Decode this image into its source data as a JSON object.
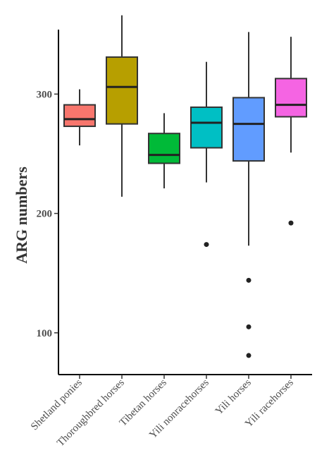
{
  "chart_data": {
    "type": "boxplot",
    "title": "",
    "xlabel": "",
    "ylabel": "ARG numbers",
    "ylim": [
      65,
      367
    ],
    "yticks": [
      100,
      200,
      300
    ],
    "grid": false,
    "legend": "none",
    "categories": [
      "Shetland ponies",
      "Thoroughbred horses",
      "Tibetan horses",
      "Yili nonracehorses",
      "Yili horses",
      "Yili racehorses"
    ],
    "boxes": [
      {
        "name": "Shetland ponies",
        "whisker_low": 257,
        "q1": 273,
        "median": 279,
        "q3": 291,
        "whisker_high": 304,
        "outliers": [],
        "color": "#f8766d"
      },
      {
        "name": "Thoroughbred horses",
        "whisker_low": 214,
        "q1": 275,
        "median": 306,
        "q3": 331,
        "whisker_high": 366,
        "outliers": [],
        "color": "#b79f00"
      },
      {
        "name": "Tibetan horses",
        "whisker_low": 221,
        "q1": 242,
        "median": 249,
        "q3": 267,
        "whisker_high": 284,
        "outliers": [],
        "color": "#00ba38"
      },
      {
        "name": "Yili nonracehorses",
        "whisker_low": 226,
        "q1": 255,
        "median": 276,
        "q3": 289,
        "whisker_high": 327,
        "outliers": [
          174
        ],
        "color": "#00bfc4"
      },
      {
        "name": "Yili horses",
        "whisker_low": 173,
        "q1": 244,
        "median": 275,
        "q3": 297,
        "whisker_high": 352,
        "outliers": [
          144,
          105,
          81
        ],
        "color": "#619cff"
      },
      {
        "name": "Yili racehorses",
        "whisker_low": 251,
        "q1": 281,
        "median": 291,
        "q3": 313,
        "whisker_high": 348,
        "outliers": [
          192
        ],
        "color": "#f564e3"
      }
    ]
  }
}
